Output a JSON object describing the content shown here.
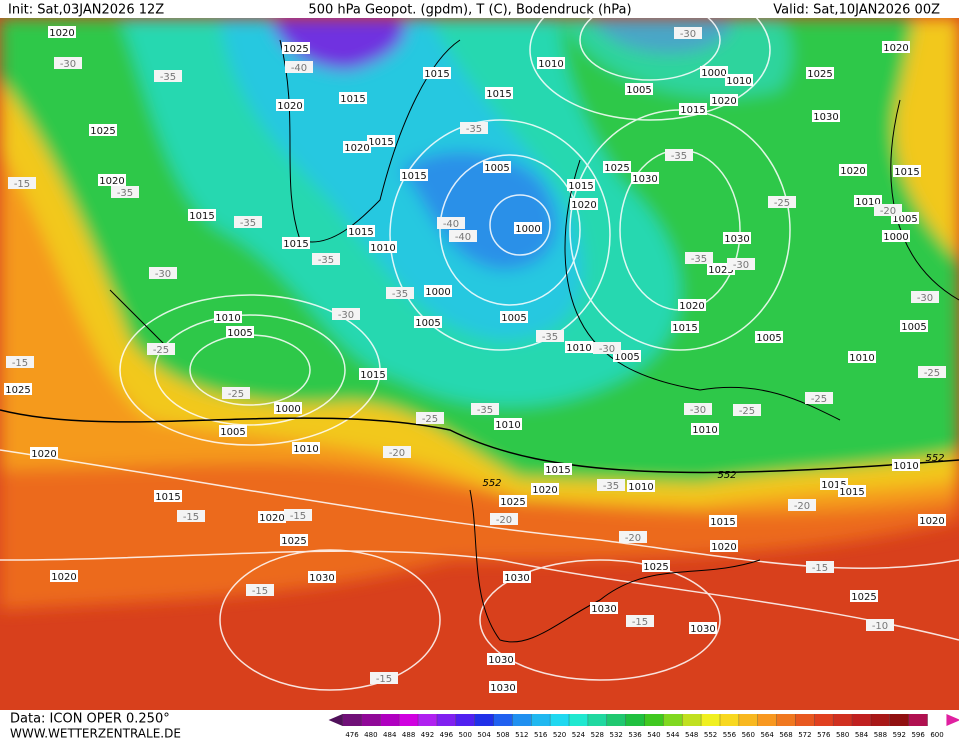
{
  "header": {
    "init": "Init: Sat,03JAN2026 12Z",
    "title": "500 hPa Geopot. (gpdm), T (C), Bodendruck (hPa)",
    "valid": "Valid: Sat,10JAN2026 00Z"
  },
  "footer": {
    "data": "Data: ICON OPER 0.250°",
    "site": "WWW.WETTERZENTRALE.DE"
  },
  "colorbar": {
    "ticks": [
      476,
      480,
      484,
      488,
      492,
      496,
      500,
      504,
      508,
      512,
      516,
      520,
      524,
      528,
      532,
      536,
      540,
      544,
      548,
      552,
      556,
      560,
      564,
      568,
      572,
      576,
      580,
      584,
      588,
      592,
      596,
      600
    ]
  },
  "pressure_labels": [
    1020,
    1025,
    1015,
    1010,
    1005,
    1000,
    1010,
    1025,
    1020,
    1015,
    1015,
    1015,
    1020,
    1030,
    1025,
    1020,
    1015,
    1020,
    1015,
    1005,
    1025,
    1030,
    1015,
    1020,
    1020,
    1015,
    1015,
    1015,
    1010,
    1000,
    1000,
    1030,
    1025,
    1020,
    1015,
    1010,
    1005,
    1000,
    1020,
    1015,
    1005,
    1005,
    1010,
    1005,
    1010,
    1005,
    1005,
    1005,
    1010,
    1015,
    1025,
    1000,
    1005,
    1010,
    1010,
    1010,
    1020,
    1015,
    1010,
    1025,
    1020,
    1010,
    1015,
    1015,
    1015,
    1020,
    1015,
    1025,
    1020,
    1020,
    1030,
    1030,
    1025,
    1020,
    1030,
    1025,
    1030,
    1030,
    1030
  ],
  "temperature_labels": [
    -30,
    -35,
    -40,
    -35,
    -30,
    -35,
    -15,
    -35,
    -35,
    -25,
    -20,
    -40,
    -40,
    -35,
    -30,
    -35,
    -30,
    -30,
    -35,
    -30,
    -35,
    -30,
    -25,
    -15,
    -25,
    -25,
    -25,
    -35,
    -30,
    -25,
    -25,
    -20,
    -35,
    -20,
    -15,
    -15,
    -20,
    -20,
    -15,
    -15,
    -15,
    -10,
    -15
  ],
  "contour_labels": [
    552,
    552,
    552
  ]
}
